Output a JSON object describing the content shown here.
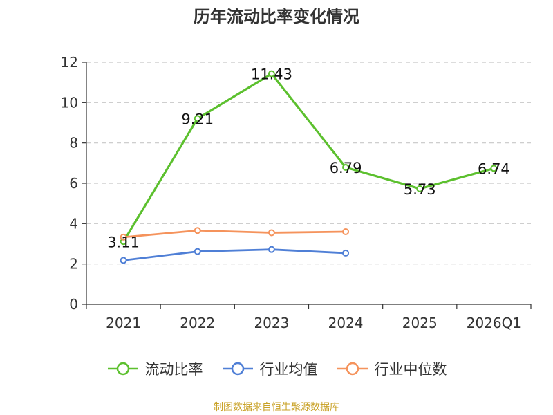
{
  "chart_data": {
    "type": "line",
    "title": "历年流动比率变化情况",
    "categories": [
      "2021",
      "2022",
      "2023",
      "2024",
      "2025",
      "2026Q1"
    ],
    "ylim": [
      0,
      12
    ],
    "yticks": [
      0,
      2,
      4,
      6,
      8,
      10,
      12
    ],
    "grid": true,
    "legend_position": "bottom",
    "series": [
      {
        "name": "流动比率",
        "color": "#5cc02e",
        "values": [
          3.11,
          9.21,
          11.43,
          6.79,
          5.73,
          6.74
        ],
        "labels": [
          "3.11",
          "9.21",
          "11.43",
          "6.79",
          "5.73",
          "6.74"
        ]
      },
      {
        "name": "行业均值",
        "color": "#4f7fd6",
        "values": [
          2.18,
          2.62,
          2.72,
          2.54,
          null,
          null
        ]
      },
      {
        "name": "行业中位数",
        "color": "#f5935c",
        "values": [
          3.33,
          3.66,
          3.55,
          3.6,
          null,
          null
        ]
      }
    ]
  },
  "footer": {
    "source": "制图数据来自恒生聚源数据库"
  }
}
